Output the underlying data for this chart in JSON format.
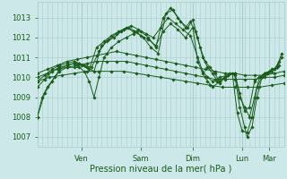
{
  "bg_color": "#cce8e8",
  "grid_color": "#aacccc",
  "line_color": "#1a5c1a",
  "marker_color": "#1a5c1a",
  "xlabel": "Pression niveau de la mer( hPa )",
  "ylim": [
    1006.5,
    1013.8
  ],
  "yticks": [
    1007,
    1008,
    1009,
    1010,
    1011,
    1012,
    1013
  ],
  "day_labels": [
    "Ven",
    "Sam",
    "Dim",
    "Lun",
    "Mar"
  ],
  "day_positions": [
    0.18,
    0.42,
    0.63,
    0.83,
    0.94
  ],
  "xlim": [
    0.0,
    1.0
  ],
  "series": [
    {
      "pts": [
        [
          0.0,
          1008.0
        ],
        [
          0.02,
          1009.0
        ],
        [
          0.04,
          1009.5
        ],
        [
          0.07,
          1010.0
        ],
        [
          0.09,
          1010.3
        ],
        [
          0.12,
          1010.5
        ],
        [
          0.15,
          1010.5
        ],
        [
          0.17,
          1010.5
        ],
        [
          0.19,
          1010.3
        ],
        [
          0.21,
          1009.8
        ],
        [
          0.23,
          1009.0
        ],
        [
          0.25,
          1010.0
        ],
        [
          0.27,
          1011.0
        ],
        [
          0.3,
          1011.5
        ],
        [
          0.33,
          1011.8
        ],
        [
          0.36,
          1012.0
        ],
        [
          0.39,
          1012.2
        ],
        [
          0.42,
          1012.3
        ],
        [
          0.45,
          1012.0
        ],
        [
          0.48,
          1011.5
        ],
        [
          0.51,
          1013.0
        ],
        [
          0.54,
          1013.5
        ],
        [
          0.57,
          1013.0
        ],
        [
          0.6,
          1012.5
        ],
        [
          0.62,
          1012.8
        ],
        [
          0.64,
          1012.3
        ],
        [
          0.66,
          1011.5
        ],
        [
          0.68,
          1010.8
        ],
        [
          0.7,
          1010.5
        ],
        [
          0.72,
          1010.2
        ],
        [
          0.74,
          1009.7
        ],
        [
          0.76,
          1010.0
        ],
        [
          0.78,
          1010.2
        ],
        [
          0.8,
          1010.1
        ],
        [
          0.82,
          1008.5
        ],
        [
          0.84,
          1007.5
        ],
        [
          0.85,
          1007.0
        ],
        [
          0.87,
          1007.5
        ],
        [
          0.89,
          1009.0
        ],
        [
          0.91,
          1010.0
        ],
        [
          0.93,
          1010.2
        ],
        [
          0.95,
          1010.3
        ],
        [
          0.97,
          1010.5
        ],
        [
          0.99,
          1011.2
        ]
      ]
    },
    {
      "pts": [
        [
          0.0,
          1008.0
        ],
        [
          0.03,
          1009.2
        ],
        [
          0.06,
          1009.8
        ],
        [
          0.09,
          1010.4
        ],
        [
          0.12,
          1010.6
        ],
        [
          0.15,
          1010.7
        ],
        [
          0.17,
          1010.7
        ],
        [
          0.19,
          1010.6
        ],
        [
          0.22,
          1010.5
        ],
        [
          0.25,
          1011.3
        ],
        [
          0.28,
          1011.8
        ],
        [
          0.31,
          1012.0
        ],
        [
          0.34,
          1012.3
        ],
        [
          0.37,
          1012.5
        ],
        [
          0.4,
          1012.3
        ],
        [
          0.43,
          1012.0
        ],
        [
          0.46,
          1011.5
        ],
        [
          0.49,
          1011.2
        ],
        [
          0.52,
          1013.2
        ],
        [
          0.55,
          1013.4
        ],
        [
          0.58,
          1012.8
        ],
        [
          0.61,
          1012.5
        ],
        [
          0.63,
          1012.9
        ],
        [
          0.65,
          1012.0
        ],
        [
          0.67,
          1011.0
        ],
        [
          0.69,
          1010.5
        ],
        [
          0.71,
          1010.2
        ],
        [
          0.73,
          1009.8
        ],
        [
          0.76,
          1010.0
        ],
        [
          0.79,
          1010.2
        ],
        [
          0.81,
          1008.2
        ],
        [
          0.83,
          1007.3
        ],
        [
          0.85,
          1007.2
        ],
        [
          0.87,
          1008.0
        ],
        [
          0.89,
          1009.5
        ],
        [
          0.91,
          1010.0
        ],
        [
          0.93,
          1010.2
        ],
        [
          0.95,
          1010.4
        ],
        [
          0.97,
          1010.5
        ],
        [
          0.99,
          1011.0
        ]
      ]
    },
    {
      "pts": [
        [
          0.0,
          1009.8
        ],
        [
          0.03,
          1010.1
        ],
        [
          0.06,
          1010.4
        ],
        [
          0.09,
          1010.6
        ],
        [
          0.12,
          1010.7
        ],
        [
          0.15,
          1010.8
        ],
        [
          0.17,
          1010.7
        ],
        [
          0.2,
          1010.5
        ],
        [
          0.23,
          1010.3
        ],
        [
          0.26,
          1011.6
        ],
        [
          0.29,
          1011.9
        ],
        [
          0.32,
          1012.2
        ],
        [
          0.35,
          1012.4
        ],
        [
          0.38,
          1012.6
        ],
        [
          0.41,
          1012.4
        ],
        [
          0.44,
          1012.2
        ],
        [
          0.47,
          1012.0
        ],
        [
          0.5,
          1012.5
        ],
        [
          0.53,
          1013.0
        ],
        [
          0.56,
          1012.7
        ],
        [
          0.59,
          1012.4
        ],
        [
          0.62,
          1012.1
        ],
        [
          0.65,
          1011.0
        ],
        [
          0.67,
          1010.3
        ],
        [
          0.69,
          1010.0
        ],
        [
          0.71,
          1009.8
        ],
        [
          0.74,
          1010.0
        ],
        [
          0.77,
          1010.1
        ],
        [
          0.8,
          1010.2
        ],
        [
          0.82,
          1009.0
        ],
        [
          0.84,
          1008.5
        ],
        [
          0.86,
          1008.0
        ],
        [
          0.88,
          1009.0
        ],
        [
          0.9,
          1010.0
        ],
        [
          0.92,
          1010.2
        ],
        [
          0.94,
          1010.3
        ],
        [
          0.96,
          1010.4
        ],
        [
          0.98,
          1010.8
        ]
      ]
    },
    {
      "pts": [
        [
          0.0,
          1009.5
        ],
        [
          0.03,
          1009.9
        ],
        [
          0.06,
          1010.3
        ],
        [
          0.09,
          1010.5
        ],
        [
          0.12,
          1010.6
        ],
        [
          0.15,
          1010.7
        ],
        [
          0.18,
          1010.6
        ],
        [
          0.21,
          1010.4
        ],
        [
          0.24,
          1011.5
        ],
        [
          0.27,
          1011.8
        ],
        [
          0.3,
          1012.1
        ],
        [
          0.33,
          1012.3
        ],
        [
          0.36,
          1012.5
        ],
        [
          0.39,
          1012.3
        ],
        [
          0.42,
          1012.1
        ],
        [
          0.45,
          1011.9
        ],
        [
          0.48,
          1011.6
        ],
        [
          0.51,
          1012.3
        ],
        [
          0.54,
          1012.7
        ],
        [
          0.57,
          1012.4
        ],
        [
          0.6,
          1012.0
        ],
        [
          0.63,
          1012.5
        ],
        [
          0.65,
          1010.8
        ],
        [
          0.67,
          1010.2
        ],
        [
          0.69,
          1009.8
        ],
        [
          0.71,
          1009.5
        ],
        [
          0.74,
          1009.8
        ],
        [
          0.77,
          1010.1
        ],
        [
          0.8,
          1010.2
        ],
        [
          0.82,
          1009.2
        ],
        [
          0.84,
          1008.3
        ],
        [
          0.86,
          1008.5
        ],
        [
          0.88,
          1009.8
        ],
        [
          0.9,
          1010.0
        ],
        [
          0.92,
          1010.2
        ],
        [
          0.94,
          1010.3
        ],
        [
          0.96,
          1010.4
        ],
        [
          0.98,
          1010.6
        ]
      ]
    },
    {
      "pts": [
        [
          0.0,
          1010.2
        ],
        [
          0.04,
          1010.4
        ],
        [
          0.08,
          1010.6
        ],
        [
          0.12,
          1010.8
        ],
        [
          0.16,
          1010.9
        ],
        [
          0.2,
          1011.0
        ],
        [
          0.24,
          1011.1
        ],
        [
          0.28,
          1011.2
        ],
        [
          0.32,
          1011.3
        ],
        [
          0.36,
          1011.2
        ],
        [
          0.4,
          1011.1
        ],
        [
          0.44,
          1011.0
        ],
        [
          0.48,
          1010.9
        ],
        [
          0.52,
          1010.8
        ],
        [
          0.56,
          1010.7
        ],
        [
          0.6,
          1010.6
        ],
        [
          0.64,
          1010.5
        ],
        [
          0.68,
          1010.4
        ],
        [
          0.72,
          1010.3
        ],
        [
          0.76,
          1010.2
        ],
        [
          0.8,
          1010.2
        ],
        [
          0.84,
          1010.1
        ],
        [
          0.88,
          1010.1
        ],
        [
          0.92,
          1010.1
        ],
        [
          0.96,
          1010.2
        ],
        [
          1.0,
          1010.3
        ]
      ]
    },
    {
      "pts": [
        [
          0.0,
          1010.0
        ],
        [
          0.04,
          1010.2
        ],
        [
          0.08,
          1010.4
        ],
        [
          0.12,
          1010.5
        ],
        [
          0.16,
          1010.6
        ],
        [
          0.2,
          1010.7
        ],
        [
          0.24,
          1010.8
        ],
        [
          0.28,
          1010.8
        ],
        [
          0.32,
          1010.8
        ],
        [
          0.36,
          1010.8
        ],
        [
          0.4,
          1010.7
        ],
        [
          0.44,
          1010.6
        ],
        [
          0.48,
          1010.5
        ],
        [
          0.52,
          1010.4
        ],
        [
          0.56,
          1010.3
        ],
        [
          0.6,
          1010.2
        ],
        [
          0.64,
          1010.1
        ],
        [
          0.68,
          1010.0
        ],
        [
          0.72,
          1009.9
        ],
        [
          0.76,
          1009.9
        ],
        [
          0.8,
          1009.9
        ],
        [
          0.84,
          1009.9
        ],
        [
          0.88,
          1009.9
        ],
        [
          0.92,
          1010.0
        ],
        [
          0.96,
          1010.0
        ],
        [
          1.0,
          1010.1
        ]
      ]
    },
    {
      "pts": [
        [
          0.0,
          1009.8
        ],
        [
          0.05,
          1010.0
        ],
        [
          0.1,
          1010.1
        ],
        [
          0.15,
          1010.2
        ],
        [
          0.2,
          1010.3
        ],
        [
          0.25,
          1010.3
        ],
        [
          0.3,
          1010.3
        ],
        [
          0.35,
          1010.3
        ],
        [
          0.4,
          1010.2
        ],
        [
          0.45,
          1010.1
        ],
        [
          0.5,
          1010.0
        ],
        [
          0.55,
          1009.9
        ],
        [
          0.6,
          1009.8
        ],
        [
          0.65,
          1009.7
        ],
        [
          0.7,
          1009.6
        ],
        [
          0.75,
          1009.5
        ],
        [
          0.8,
          1009.5
        ],
        [
          0.85,
          1009.5
        ],
        [
          0.9,
          1009.5
        ],
        [
          0.95,
          1009.6
        ],
        [
          1.0,
          1009.7
        ]
      ]
    }
  ]
}
